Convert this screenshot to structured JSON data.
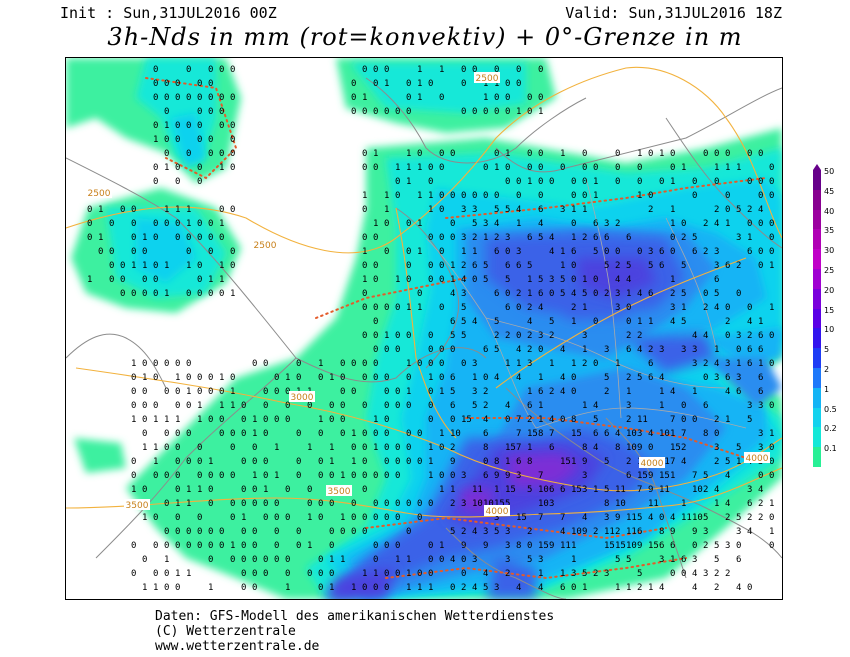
{
  "header": {
    "init": "Init : Sun,31JUL2016 00Z",
    "valid": "Valid: Sun,31JUL2016 18Z",
    "title": "3h-Nds in mm (rot=konvektiv) + 0°-Grenze in m"
  },
  "map": {
    "region": "Europe",
    "colors": {
      "ocean": "#ffffff",
      "coast": "#8c8c8c",
      "border": "#aaaaaa",
      "freezing_level": "#f2b23e",
      "convective_dots": "#e35b2a",
      "p01": "#3ef0a0",
      "p02": "#12e8d8",
      "p05": "#0fd2ee",
      "p1": "#19b4f5",
      "p2": "#2b8df0",
      "p5": "#3a62e8",
      "p10": "#4b43df",
      "p20": "#7b2fd6",
      "p30": "#a12ab6"
    },
    "contour_labels": [
      "2500",
      "2500",
      "2500",
      "3000",
      "3500",
      "3500",
      "4000",
      "4000",
      "4000"
    ],
    "grid_values_sample": [
      "0",
      "1",
      "2",
      "3",
      "4",
      "5",
      "6",
      "7",
      "8",
      "9",
      "10",
      "11",
      "15"
    ]
  },
  "legend": {
    "items": [
      {
        "label": "50",
        "color": "#66008a"
      },
      {
        "label": "45",
        "color": "#880090"
      },
      {
        "label": "40",
        "color": "#9c00a0"
      },
      {
        "label": "35",
        "color": "#b000b5"
      },
      {
        "label": "30",
        "color": "#c000c8"
      },
      {
        "label": "25",
        "color": "#a000d2"
      },
      {
        "label": "20",
        "color": "#7a00dc"
      },
      {
        "label": "15",
        "color": "#5a00e6"
      },
      {
        "label": "10",
        "color": "#3214ee"
      },
      {
        "label": "5",
        "color": "#1e3cf5"
      },
      {
        "label": "2",
        "color": "#1e78fa"
      },
      {
        "label": "1",
        "color": "#14b4f5"
      },
      {
        "label": "0.5",
        "color": "#14d2ee"
      },
      {
        "label": "0.2",
        "color": "#14e8d8"
      },
      {
        "label": "0.1",
        "color": "#28f096"
      }
    ]
  },
  "footer": {
    "line1": "Daten: GFS-Modell des amerikanischen Wetterdienstes",
    "line2": "(C) Wetterzentrale",
    "line3": "www.wetterzentrale.de"
  }
}
